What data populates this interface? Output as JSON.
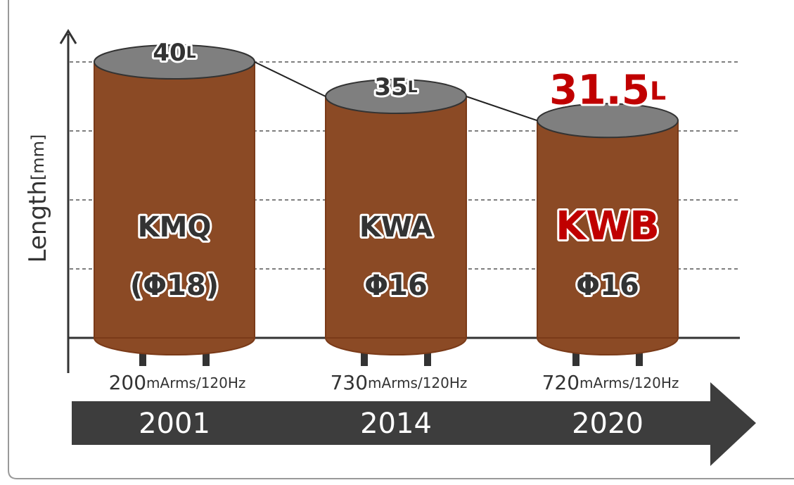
{
  "chart_data": {
    "type": "cylinder",
    "y_label": "Length[mm]",
    "categories": [
      "2001",
      "2014",
      "2020"
    ],
    "values": [
      40,
      35,
      31.5
    ],
    "value_labels": [
      "40L",
      "35L",
      "31.5L"
    ],
    "models": [
      "KMQ",
      "KWA",
      "KWB"
    ],
    "diameters": [
      "(Φ18)",
      "Φ16",
      "Φ16"
    ],
    "ratings": [
      "200mArms/120Hz",
      "730mArms/120Hz",
      "720mArms/120Hz"
    ],
    "label_colors": [
      "#333333",
      "#333333",
      "#c00000"
    ],
    "color": "#8b4a25",
    "ylim": [
      0,
      40
    ],
    "yticks": [
      10,
      20,
      30,
      40
    ],
    "grid": true
  }
}
